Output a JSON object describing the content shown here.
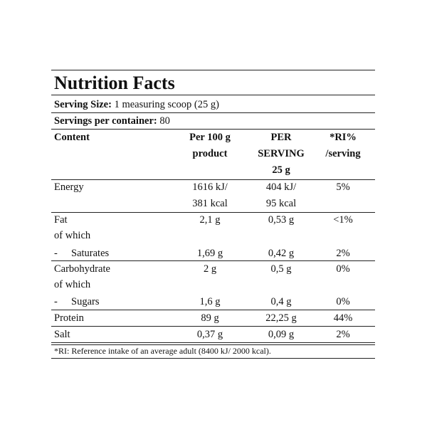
{
  "title": "Nutrition Facts",
  "serving_size": {
    "label": "Serving Size:",
    "value": "1 measuring scoop (25 g)"
  },
  "servings_per_container": {
    "label": "Servings per container:",
    "value": "80"
  },
  "header": [
    [
      "Content"
    ],
    [
      "Per 100 g",
      "product"
    ],
    [
      "PER",
      "SERVING",
      "25 g"
    ],
    [
      "*RI%",
      "/serving"
    ]
  ],
  "blocks": [
    {
      "lines": [
        [
          [
            "Energy"
          ],
          [
            "1616 kJ/",
            "381 kcal"
          ],
          [
            "404 kJ/",
            "95 kcal"
          ],
          [
            "5%"
          ]
        ]
      ]
    },
    {
      "lines": [
        [
          [
            "Fat"
          ],
          [
            "2,1 g"
          ],
          [
            "0,53 g"
          ],
          [
            "<1%"
          ]
        ],
        [
          [
            "of which"
          ]
        ],
        [
          [
            {
              "bullet": "-",
              "text": "Saturates"
            }
          ],
          [
            "1,69 g"
          ],
          [
            "0,42 g"
          ],
          [
            "2%"
          ]
        ]
      ]
    },
    {
      "lines": [
        [
          [
            "Carbohydrate"
          ],
          [
            "2 g"
          ],
          [
            "0,5 g"
          ],
          [
            "0%"
          ]
        ],
        [
          [
            "of which"
          ]
        ],
        [
          [
            {
              "bullet": "-",
              "text": "Sugars"
            }
          ],
          [
            "1,6 g"
          ],
          [
            "0,4 g"
          ],
          [
            "0%"
          ]
        ]
      ]
    },
    {
      "lines": [
        [
          [
            "Protein"
          ],
          [
            "89 g"
          ],
          [
            "22,25 g"
          ],
          [
            "44%"
          ]
        ]
      ]
    },
    {
      "lines": [
        [
          [
            "Salt"
          ],
          [
            "0,37 g"
          ],
          [
            "0,09 g"
          ],
          [
            "2%"
          ]
        ]
      ]
    }
  ],
  "footnote": "*RI: Reference intake of an average adult (8400 kJ/ 2000 kcal)."
}
